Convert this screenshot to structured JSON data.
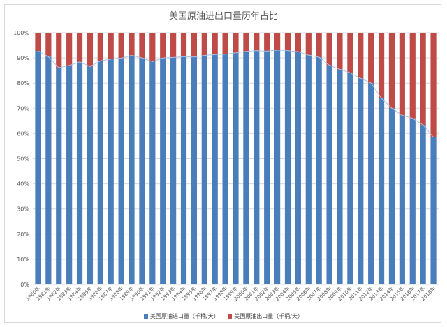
{
  "chart_data": {
    "type": "bar",
    "stacked_percent": true,
    "title": "美国原油进出口量历年占比",
    "xlabel": "",
    "ylabel": "",
    "ylim": [
      0,
      100
    ],
    "y_ticks": [
      "0%",
      "10%",
      "20%",
      "30%",
      "40%",
      "50%",
      "60%",
      "70%",
      "80%",
      "90%",
      "100%"
    ],
    "grid": true,
    "legend_position": "bottom",
    "categories": [
      "1980年",
      "1981年",
      "1982年",
      "1983年",
      "1984年",
      "1985年",
      "1986年",
      "1987年",
      "1988年",
      "1989年",
      "1990年",
      "1991年",
      "1992年",
      "1993年",
      "1994年",
      "1995年",
      "1996年",
      "1997年",
      "1998年",
      "1999年",
      "2000年",
      "2001年",
      "2002年",
      "2003年",
      "2004年",
      "2005年",
      "2006年",
      "2007年",
      "2008年",
      "2009年",
      "2010年",
      "2011年",
      "2012年",
      "2013年",
      "2014年",
      "2015年",
      "2016年",
      "2017年",
      "2018年"
    ],
    "series": [
      {
        "name": "美国原油进口量（千桶/天）",
        "color": "#4a7ebb",
        "values": [
          92.8,
          90.5,
          86.1,
          87.0,
          88.4,
          86.6,
          88.8,
          89.5,
          89.9,
          91.0,
          90.0,
          88.5,
          90.0,
          90.2,
          90.5,
          90.4,
          91.0,
          91.3,
          91.5,
          92.0,
          92.6,
          92.9,
          92.7,
          93.1,
          92.9,
          92.5,
          91.1,
          90.3,
          87.1,
          85.5,
          84.1,
          81.9,
          80.0,
          74.0,
          70.0,
          67.2,
          66.0,
          63.4,
          58.5
        ]
      },
      {
        "name": "美国原油出口量（千桶/天）",
        "color": "#be4b48",
        "values": [
          7.2,
          9.5,
          13.9,
          13.0,
          11.6,
          13.4,
          11.2,
          10.5,
          10.1,
          9.0,
          10.0,
          11.5,
          10.0,
          9.8,
          9.5,
          9.6,
          9.0,
          8.7,
          8.5,
          8.0,
          7.4,
          7.1,
          7.3,
          6.9,
          7.1,
          7.5,
          8.9,
          9.7,
          12.9,
          14.5,
          15.9,
          18.1,
          20.0,
          26.0,
          30.0,
          32.8,
          34.0,
          36.6,
          41.5
        ]
      }
    ]
  }
}
